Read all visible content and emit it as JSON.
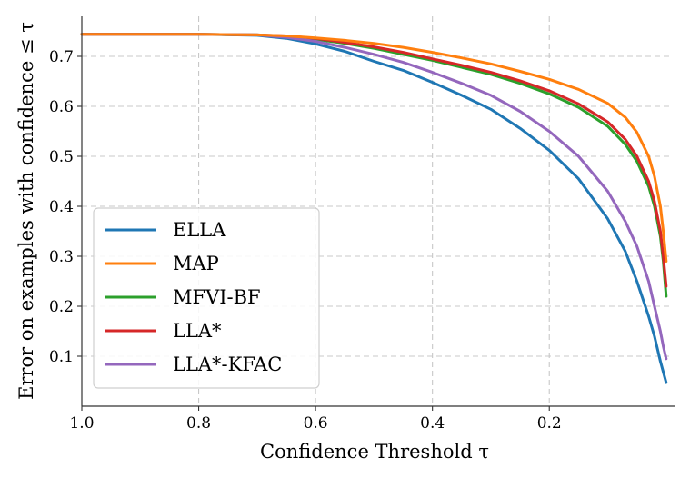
{
  "chart_data": {
    "type": "line",
    "title": "",
    "xlabel": "Confidence Threshold τ",
    "ylabel": "Error on examples with confidence ≤ τ",
    "xlim": [
      1.0,
      -0.005
    ],
    "ylim": [
      0.0,
      0.78
    ],
    "x_inverted": true,
    "xticks": [
      1.0,
      0.8,
      0.6,
      0.4,
      0.2
    ],
    "xtick_labels": [
      "1.0",
      "0.8",
      "0.6",
      "0.4",
      "0.2"
    ],
    "yticks": [
      0.1,
      0.2,
      0.3,
      0.4,
      0.5,
      0.6,
      0.7
    ],
    "ytick_labels": [
      "0.1",
      "0.2",
      "0.3",
      "0.4",
      "0.5",
      "0.6",
      "0.7"
    ],
    "grid": true,
    "legend_position": "lower-left",
    "series": [
      {
        "name": "ELLA",
        "color": "#1f77b4",
        "x": [
          1.0,
          0.9,
          0.8,
          0.7,
          0.65,
          0.6,
          0.55,
          0.5,
          0.45,
          0.4,
          0.35,
          0.3,
          0.25,
          0.2,
          0.15,
          0.1,
          0.07,
          0.05,
          0.03,
          0.02,
          0.01,
          0.0
        ],
        "y": [
          0.744,
          0.744,
          0.744,
          0.742,
          0.736,
          0.725,
          0.71,
          0.69,
          0.672,
          0.648,
          0.622,
          0.594,
          0.556,
          0.512,
          0.455,
          0.375,
          0.31,
          0.25,
          0.18,
          0.14,
          0.09,
          0.047
        ]
      },
      {
        "name": "MAP",
        "color": "#ff7f0e",
        "x": [
          1.0,
          0.9,
          0.8,
          0.7,
          0.65,
          0.6,
          0.55,
          0.5,
          0.45,
          0.4,
          0.35,
          0.3,
          0.25,
          0.2,
          0.15,
          0.1,
          0.07,
          0.05,
          0.03,
          0.02,
          0.01,
          0.005,
          0.0
        ],
        "y": [
          0.744,
          0.744,
          0.744,
          0.743,
          0.741,
          0.737,
          0.732,
          0.726,
          0.718,
          0.708,
          0.697,
          0.685,
          0.67,
          0.654,
          0.634,
          0.606,
          0.578,
          0.548,
          0.5,
          0.46,
          0.4,
          0.35,
          0.29
        ]
      },
      {
        "name": "MFVI-BF",
        "color": "#2ca02c",
        "x": [
          1.0,
          0.9,
          0.8,
          0.7,
          0.65,
          0.6,
          0.55,
          0.5,
          0.45,
          0.4,
          0.35,
          0.3,
          0.25,
          0.2,
          0.15,
          0.1,
          0.07,
          0.05,
          0.03,
          0.02,
          0.01,
          0.005,
          0.0
        ],
        "y": [
          0.744,
          0.744,
          0.744,
          0.743,
          0.74,
          0.734,
          0.726,
          0.716,
          0.704,
          0.692,
          0.678,
          0.664,
          0.646,
          0.625,
          0.598,
          0.56,
          0.524,
          0.49,
          0.44,
          0.4,
          0.34,
          0.29,
          0.22
        ]
      },
      {
        "name": "LLA*",
        "color": "#d62728",
        "x": [
          1.0,
          0.9,
          0.8,
          0.7,
          0.65,
          0.6,
          0.55,
          0.5,
          0.45,
          0.4,
          0.35,
          0.3,
          0.25,
          0.2,
          0.15,
          0.1,
          0.07,
          0.05,
          0.03,
          0.02,
          0.01,
          0.005,
          0.0
        ],
        "y": [
          0.744,
          0.744,
          0.744,
          0.743,
          0.741,
          0.736,
          0.728,
          0.719,
          0.708,
          0.695,
          0.682,
          0.668,
          0.651,
          0.631,
          0.605,
          0.569,
          0.534,
          0.5,
          0.45,
          0.41,
          0.35,
          0.3,
          0.24
        ]
      },
      {
        "name": "LLA*-KFAC",
        "color": "#9467bd",
        "x": [
          1.0,
          0.9,
          0.8,
          0.7,
          0.65,
          0.6,
          0.55,
          0.5,
          0.45,
          0.4,
          0.35,
          0.3,
          0.25,
          0.2,
          0.15,
          0.1,
          0.07,
          0.05,
          0.03,
          0.02,
          0.01,
          0.005,
          0.0
        ],
        "y": [
          0.744,
          0.744,
          0.744,
          0.743,
          0.738,
          0.73,
          0.718,
          0.704,
          0.688,
          0.668,
          0.646,
          0.622,
          0.59,
          0.55,
          0.5,
          0.43,
          0.37,
          0.32,
          0.25,
          0.2,
          0.15,
          0.12,
          0.095
        ]
      }
    ]
  }
}
